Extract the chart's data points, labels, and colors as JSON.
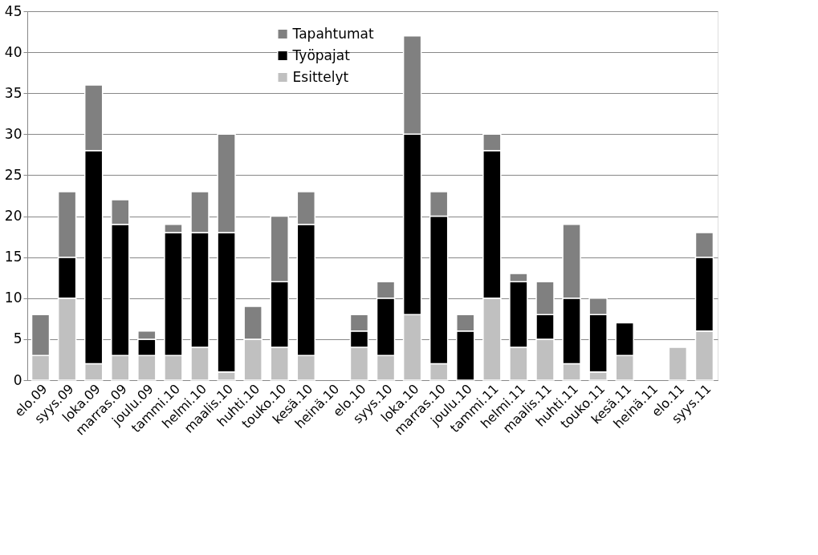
{
  "chart_data": {
    "type": "bar",
    "stacked": true,
    "categories": [
      "elo.09",
      "syys.09",
      "loka.09",
      "marras.09",
      "joulu.09",
      "tammi.10",
      "helmi.10",
      "maalis.10",
      "huhti.10",
      "touko.10",
      "kesä.10",
      "heinä.10",
      "elo.10",
      "syys.10",
      "loka.10",
      "marras.10",
      "joulu.10",
      "tammi.11",
      "helmi.11",
      "maalis.11",
      "huhti.11",
      "touko.11",
      "kesä.11",
      "heinä.11",
      "elo.11",
      "syys.11"
    ],
    "series": [
      {
        "name": "Esittelyt",
        "color": "#c0c0c0",
        "values": [
          3,
          10,
          2,
          3,
          3,
          3,
          4,
          1,
          5,
          4,
          3,
          0,
          4,
          3,
          8,
          2,
          0,
          10,
          4,
          5,
          2,
          1,
          3,
          0,
          4,
          6
        ]
      },
      {
        "name": "Työpajat",
        "color": "#000000",
        "values": [
          0,
          5,
          26,
          16,
          2,
          15,
          14,
          17,
          0,
          8,
          16,
          0,
          2,
          7,
          22,
          18,
          6,
          18,
          8,
          3,
          8,
          7,
          4,
          0,
          0,
          9
        ]
      },
      {
        "name": "Tapahtumat",
        "color": "#808080",
        "values": [
          5,
          8,
          8,
          3,
          1,
          1,
          5,
          12,
          4,
          8,
          4,
          0,
          2,
          2,
          12,
          3,
          2,
          2,
          1,
          4,
          9,
          2,
          0,
          0,
          0,
          3
        ]
      }
    ],
    "ylim": [
      0,
      45
    ],
    "yticks": [
      0,
      5,
      10,
      15,
      20,
      25,
      30,
      35,
      40,
      45
    ],
    "grid": "y",
    "legend": "top"
  }
}
